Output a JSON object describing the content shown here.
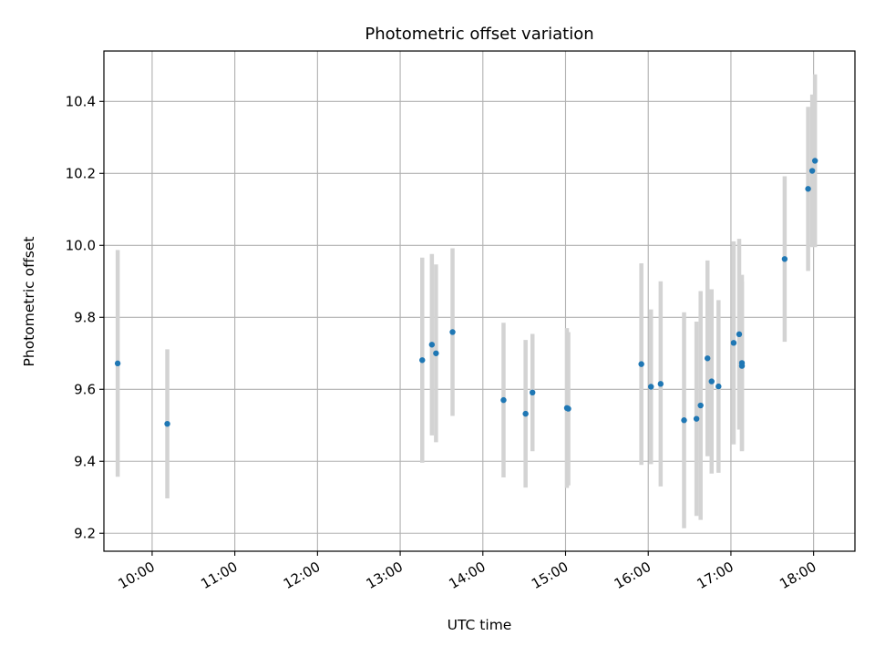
{
  "chart_data": {
    "type": "scatter",
    "title": "Photometric offset variation",
    "xlabel": "UTC time",
    "ylabel": "Photometric offset",
    "x_unit": "UTC hour",
    "xlim": [
      "09:25",
      "18:30"
    ],
    "ylim": [
      9.15,
      10.54
    ],
    "xticks": [
      {
        "t": "10:00",
        "label": "10:00"
      },
      {
        "t": "11:00",
        "label": "11:00"
      },
      {
        "t": "12:00",
        "label": "12:00"
      },
      {
        "t": "13:00",
        "label": "13:00"
      },
      {
        "t": "14:00",
        "label": "14:00"
      },
      {
        "t": "15:00",
        "label": "15:00"
      },
      {
        "t": "16:00",
        "label": "16:00"
      },
      {
        "t": "17:00",
        "label": "17:00"
      },
      {
        "t": "18:00",
        "label": "18:00"
      }
    ],
    "yticks": [
      {
        "v": 9.2,
        "label": "9.2"
      },
      {
        "v": 9.4,
        "label": "9.4"
      },
      {
        "v": 9.6,
        "label": "9.6"
      },
      {
        "v": 9.8,
        "label": "9.8"
      },
      {
        "v": 10.0,
        "label": "10.0"
      },
      {
        "v": 10.2,
        "label": "10.2"
      },
      {
        "v": 10.4,
        "label": "10.4"
      }
    ],
    "grid": true,
    "colors": {
      "point": "#1f77b4",
      "errorbar": "#d3d3d3",
      "grid": "#b0b0b0"
    },
    "points": [
      {
        "t": "09:35",
        "y": 9.672,
        "err": 0.315
      },
      {
        "t": "10:11",
        "y": 9.504,
        "err": 0.207
      },
      {
        "t": "13:16",
        "y": 9.681,
        "err": 0.285
      },
      {
        "t": "13:23",
        "y": 9.724,
        "err": 0.252
      },
      {
        "t": "13:26",
        "y": 9.7,
        "err": 0.247
      },
      {
        "t": "13:38",
        "y": 9.759,
        "err": 0.233
      },
      {
        "t": "14:15",
        "y": 9.57,
        "err": 0.215
      },
      {
        "t": "14:31",
        "y": 9.532,
        "err": 0.205
      },
      {
        "t": "14:36",
        "y": 9.591,
        "err": 0.163
      },
      {
        "t": "15:01",
        "y": 9.548,
        "err": 0.222
      },
      {
        "t": "15:02",
        "y": 9.546,
        "err": 0.213
      },
      {
        "t": "15:55",
        "y": 9.67,
        "err": 0.28
      },
      {
        "t": "16:02",
        "y": 9.607,
        "err": 0.215
      },
      {
        "t": "16:09",
        "y": 9.615,
        "err": 0.285
      },
      {
        "t": "16:26",
        "y": 9.514,
        "err": 0.3
      },
      {
        "t": "16:35",
        "y": 9.518,
        "err": 0.27
      },
      {
        "t": "16:38",
        "y": 9.555,
        "err": 0.318
      },
      {
        "t": "16:43",
        "y": 9.686,
        "err": 0.272
      },
      {
        "t": "16:46",
        "y": 9.622,
        "err": 0.256
      },
      {
        "t": "16:51",
        "y": 9.608,
        "err": 0.24
      },
      {
        "t": "17:02",
        "y": 9.729,
        "err": 0.282
      },
      {
        "t": "17:06",
        "y": 9.753,
        "err": 0.265
      },
      {
        "t": "17:08",
        "y": 9.673,
        "err": 0.245
      },
      {
        "t": "17:08",
        "y": 9.665,
        "err": 0.235
      },
      {
        "t": "17:39",
        "y": 9.962,
        "err": 0.23
      },
      {
        "t": "17:56",
        "y": 10.157,
        "err": 0.228
      },
      {
        "t": "17:59",
        "y": 10.207,
        "err": 0.212
      },
      {
        "t": "18:01",
        "y": 10.235,
        "err": 0.24
      }
    ]
  }
}
